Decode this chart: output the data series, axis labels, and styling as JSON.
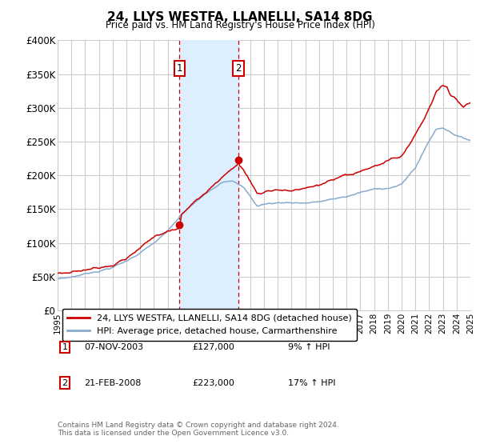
{
  "title": "24, LLYS WESTFA, LLANELLI, SA14 8DG",
  "subtitle": "Price paid vs. HM Land Registry's House Price Index (HPI)",
  "legend_line1": "24, LLYS WESTFA, LLANELLI, SA14 8DG (detached house)",
  "legend_line2": "HPI: Average price, detached house, Carmarthenshire",
  "footer": "Contains HM Land Registry data © Crown copyright and database right 2024.\nThis data is licensed under the Open Government Licence v3.0.",
  "sale1_label": "1",
  "sale1_date": "07-NOV-2003",
  "sale1_price": "£127,000",
  "sale1_hpi": "9% ↑ HPI",
  "sale2_label": "2",
  "sale2_date": "21-FEB-2008",
  "sale2_price": "£223,000",
  "sale2_hpi": "17% ↑ HPI",
  "sale1_x": 2003.85,
  "sale1_y": 127000,
  "sale2_x": 2008.13,
  "sale2_y": 223000,
  "shade1_x1": 2003.85,
  "shade1_x2": 2008.13,
  "red_color": "#cc0000",
  "blue_color": "#88aacc",
  "shade_color": "#ddeeff",
  "background_color": "#ffffff",
  "grid_color": "#cccccc",
  "xmin": 1995,
  "xmax": 2025,
  "ymin": 0,
  "ymax": 400000,
  "yticks": [
    0,
    50000,
    100000,
    150000,
    200000,
    250000,
    300000,
    350000,
    400000
  ]
}
